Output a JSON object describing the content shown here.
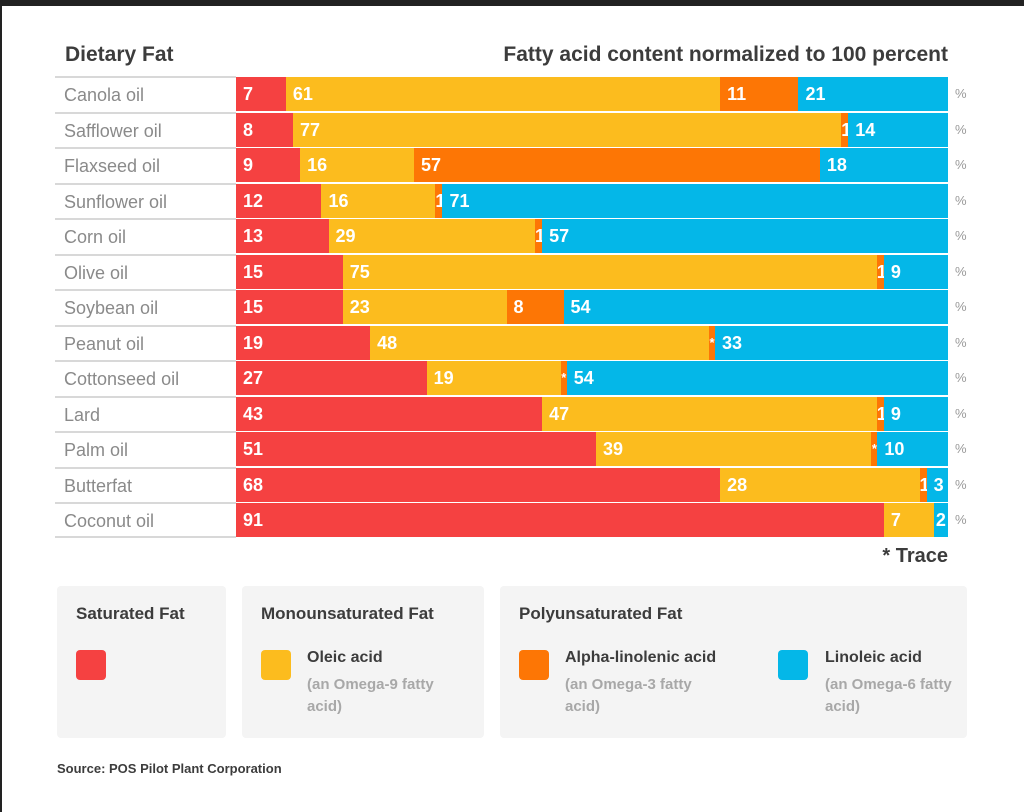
{
  "chart_data": {
    "type": "bar",
    "orientation": "horizontal",
    "stacked": true,
    "normalized": true,
    "title_left": "Dietary Fat",
    "title_right": "Fatty acid content normalized to 100 percent",
    "unit_suffix": "%",
    "footnote": "* Trace",
    "trace_symbol": "*",
    "categories": [
      "Canola oil",
      "Safflower oil",
      "Flaxseed oil",
      "Sunflower oil",
      "Corn oil",
      "Olive oil",
      "Soybean oil",
      "Peanut oil",
      "Cottonseed oil",
      "Lard",
      "Palm oil",
      "Butterfat",
      "Coconut oil"
    ],
    "series": [
      {
        "name": "Saturated Fat",
        "color": "#f54141",
        "values": [
          7,
          8,
          9,
          12,
          13,
          15,
          15,
          19,
          27,
          43,
          51,
          68,
          91
        ]
      },
      {
        "name": "Oleic acid",
        "color": "#fcbc1e",
        "values": [
          61,
          77,
          16,
          16,
          29,
          75,
          23,
          48,
          19,
          47,
          39,
          28,
          7
        ]
      },
      {
        "name": "Alpha-linolenic acid",
        "color": "#fd7605",
        "values": [
          11,
          1,
          57,
          1,
          1,
          1,
          8,
          "trace",
          "trace",
          1,
          "trace",
          1,
          0
        ]
      },
      {
        "name": "Linoleic acid",
        "color": "#04b7e8",
        "values": [
          21,
          14,
          18,
          71,
          57,
          9,
          54,
          33,
          54,
          9,
          10,
          3,
          2
        ]
      }
    ],
    "xlim": [
      0,
      100
    ],
    "legend_position": "bottom"
  },
  "legend": {
    "groups": [
      {
        "title": "Saturated Fat",
        "items": [
          {
            "name": "",
            "note": "",
            "color": "#f54141"
          }
        ]
      },
      {
        "title": "Monounsaturated Fat",
        "items": [
          {
            "name": "Oleic acid",
            "note": "(an Omega-9 fatty acid)",
            "color": "#fcbc1e"
          }
        ]
      },
      {
        "title": "Polyunsaturated Fat",
        "items": [
          {
            "name": "Alpha-linolenic acid",
            "note": "(an Omega-3 fatty acid)",
            "color": "#fd7605"
          },
          {
            "name": "Linoleic acid",
            "note": "(an Omega-6 fatty acid)",
            "color": "#04b7e8"
          }
        ]
      }
    ]
  },
  "source": "Source: POS Pilot Plant Corporation"
}
